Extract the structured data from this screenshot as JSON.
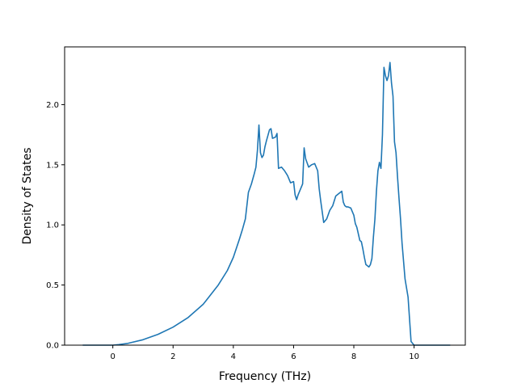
{
  "chart_data": {
    "type": "line",
    "title": "",
    "xlabel": "Frequency (THz)",
    "ylabel": "Density of States",
    "xlim": [
      -1.6,
      11.7
    ],
    "ylim": [
      0.0,
      2.48
    ],
    "xticks": [
      0,
      2,
      4,
      6,
      8,
      10
    ],
    "xtick_labels": [
      "0",
      "2",
      "4",
      "6",
      "8",
      "10"
    ],
    "yticks": [
      0.0,
      0.5,
      1.0,
      1.5,
      2.0
    ],
    "ytick_labels": [
      "0.0",
      "0.5",
      "1.0",
      "1.5",
      "2.0"
    ],
    "grid": false,
    "legend": "none",
    "series": [
      {
        "color": "#1f77b4",
        "x": [
          -1.0,
          -0.5,
          0.0,
          0.2,
          0.5,
          1.0,
          1.5,
          2.0,
          2.5,
          3.0,
          3.5,
          3.8,
          4.0,
          4.2,
          4.3,
          4.4,
          4.5,
          4.6,
          4.7,
          4.75,
          4.8,
          4.85,
          4.9,
          4.95,
          5.0,
          5.05,
          5.1,
          5.2,
          5.25,
          5.3,
          5.4,
          5.45,
          5.5,
          5.6,
          5.7,
          5.8,
          5.9,
          6.0,
          6.05,
          6.1,
          6.15,
          6.2,
          6.3,
          6.35,
          6.4,
          6.5,
          6.6,
          6.7,
          6.8,
          6.85,
          6.9,
          7.0,
          7.1,
          7.2,
          7.25,
          7.3,
          7.4,
          7.5,
          7.6,
          7.65,
          7.7,
          7.75,
          7.8,
          7.9,
          8.0,
          8.05,
          8.1,
          8.2,
          8.25,
          8.3,
          8.35,
          8.4,
          8.5,
          8.55,
          8.6,
          8.65,
          8.7,
          8.75,
          8.8,
          8.85,
          8.9,
          8.95,
          9.0,
          9.05,
          9.1,
          9.15,
          9.2,
          9.25,
          9.3,
          9.35,
          9.4,
          9.45,
          9.5,
          9.55,
          9.6,
          9.7,
          9.8,
          9.9,
          10.0,
          10.05,
          10.1,
          10.15,
          10.2,
          10.5,
          11.0,
          11.2
        ],
        "y": [
          0.0,
          0.0,
          0.0,
          0.005,
          0.015,
          0.045,
          0.09,
          0.15,
          0.23,
          0.34,
          0.5,
          0.62,
          0.73,
          0.88,
          0.96,
          1.05,
          1.27,
          1.34,
          1.43,
          1.48,
          1.62,
          1.83,
          1.6,
          1.56,
          1.58,
          1.65,
          1.7,
          1.79,
          1.8,
          1.72,
          1.73,
          1.76,
          1.47,
          1.48,
          1.45,
          1.41,
          1.35,
          1.36,
          1.25,
          1.21,
          1.25,
          1.28,
          1.34,
          1.64,
          1.55,
          1.48,
          1.5,
          1.51,
          1.45,
          1.3,
          1.2,
          1.02,
          1.05,
          1.12,
          1.14,
          1.16,
          1.24,
          1.26,
          1.28,
          1.19,
          1.16,
          1.15,
          1.15,
          1.14,
          1.08,
          1.01,
          0.98,
          0.87,
          0.86,
          0.8,
          0.73,
          0.67,
          0.65,
          0.67,
          0.72,
          0.9,
          1.05,
          1.28,
          1.45,
          1.52,
          1.47,
          1.75,
          2.31,
          2.24,
          2.2,
          2.24,
          2.35,
          2.18,
          2.07,
          1.69,
          1.6,
          1.4,
          1.22,
          1.05,
          0.85,
          0.55,
          0.4,
          0.03,
          0.0,
          0.0,
          0.0,
          0.0,
          0.0,
          0.0,
          0.0,
          0.0
        ]
      }
    ]
  }
}
